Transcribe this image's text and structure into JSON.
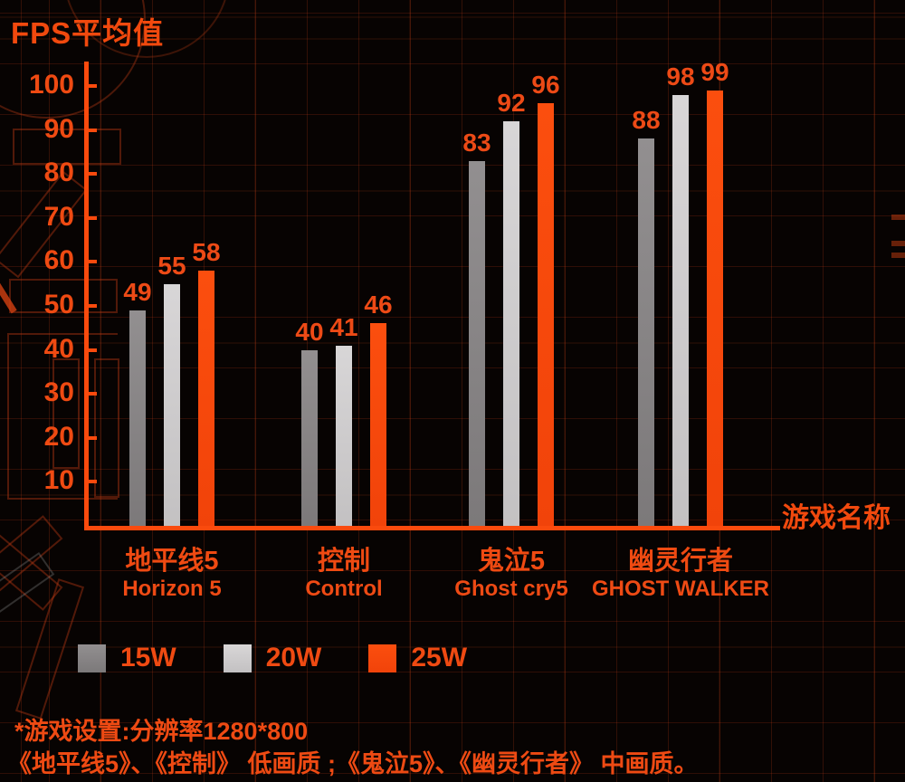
{
  "header": {
    "title": "FPS平均值"
  },
  "chart_data": {
    "type": "bar",
    "title": "FPS平均值",
    "xlabel": "游戏名称",
    "ylabel": "FPS平均值",
    "ylim": [
      0,
      100
    ],
    "y_ticks": [
      100,
      90,
      80,
      70,
      60,
      50,
      40,
      30,
      20,
      10
    ],
    "grid": true,
    "legend_position": "bottom",
    "categories": [
      "地平线5",
      "控制",
      "鬼泣5",
      "幽灵行者"
    ],
    "categories_en": [
      "Horizon 5",
      "Control",
      "Ghost cry5",
      "GHOST WALKER"
    ],
    "series": [
      {
        "name": "15W",
        "color": "#8a8788",
        "values": [
          49,
          40,
          83,
          88
        ]
      },
      {
        "name": "20W",
        "color": "#cfcdce",
        "values": [
          55,
          41,
          92,
          98
        ]
      },
      {
        "name": "25W",
        "color": "#fa4a0d",
        "values": [
          58,
          46,
          96,
          99
        ]
      }
    ]
  },
  "footnotes": {
    "line1": "*游戏设置:分辨率1280*800",
    "line2": "《地平线5》、《控制》 低画质 ;《鬼泣5》、《幽灵行者》 中画质。"
  },
  "colors": {
    "background": "#070302",
    "accent_orange": "#fa4a0d",
    "label_orange": "#ef4a12",
    "grid_line": "#3a140a",
    "bar_15w": "#8a8788",
    "bar_20w": "#cfcdce",
    "bar_25w": "#fa4a0d"
  }
}
